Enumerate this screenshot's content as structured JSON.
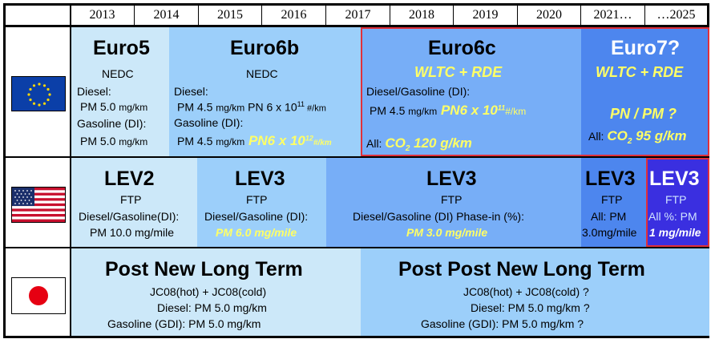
{
  "years": [
    "2013",
    "2014",
    "2015",
    "2016",
    "2017",
    "2018",
    "2019",
    "2020",
    "2021…",
    "…2025"
  ],
  "eu": {
    "euro5": {
      "title": "Euro5",
      "cycle": "NEDC",
      "l1": "Diesel:",
      "l2a": "PM 5.0 ",
      "l2b": "mg/km",
      "l3": "Gasoline (DI):",
      "l4a": "PM 5.0 ",
      "l4b": "mg/km"
    },
    "euro6b": {
      "title": "Euro6b",
      "cycle": "NEDC",
      "l1": "Diesel:",
      "l2a": "PM 4.5 ",
      "l2b": "mg/km",
      "l2c": " PN 6 x 10",
      "l2sup": "11",
      "l2d": " #/km",
      "l3": "Gasoline (DI):",
      "l4a": "PM 4.5 ",
      "l4b": "mg/km",
      "l4c": " PN6 x 10",
      "l4sup": "12",
      "l4d": "#/km"
    },
    "euro6c": {
      "title": "Euro6c",
      "cycle": "WLTC + RDE",
      "l1": "Diesel/Gasoline (DI):",
      "l2a": "PM 4.5 ",
      "l2b": "mg/km",
      "l2c": " PN6 x 10",
      "l2sup": "11",
      "l2d": "#/km",
      "l3a": "All: ",
      "l3b": "CO",
      "l3sub": "2",
      "l3c": " 120 g/km"
    },
    "euro7": {
      "title": "Euro7?",
      "cycle": "WLTC + RDE",
      "l1": "PN / PM ?",
      "l2a": "All: ",
      "l2b": "CO",
      "l2sub": "2",
      "l2c": " 95 g/km"
    }
  },
  "us": {
    "lev2": {
      "title": "LEV2",
      "cycle": "FTP",
      "l1": "Diesel/Gasoline(DI):",
      "l2": "PM 10.0 mg/mile"
    },
    "lev3a": {
      "title": "LEV3",
      "cycle": "FTP",
      "l1": "Diesel/Gasoline (DI):",
      "l2": "PM 6.0 mg/mile"
    },
    "lev3b": {
      "title": "LEV3",
      "cycle": "FTP",
      "l1": "Diesel/Gasoline (DI) Phase-in (%):",
      "l2": "PM 3.0 mg/mile"
    },
    "lev3c": {
      "title": "LEV3",
      "cycle": "FTP",
      "l1": "All: PM",
      "l2": "3.0mg/mile"
    },
    "lev3d": {
      "title": "LEV3",
      "cycle": "FTP",
      "l1": "All %: PM",
      "l2": "1 mg/mile"
    }
  },
  "jp": {
    "pnlt": {
      "title": "Post New Long Term",
      "l1": "JC08(hot) + JC08(cold)",
      "l2": "Diesel: PM 5.0 mg/km",
      "l3": "Gasoline (GDI): PM 5.0 mg/km"
    },
    "ppnlt": {
      "title": "Post Post New Long Term",
      "l1": "JC08(hot) + JC08(cold) ?",
      "l2": "Diesel: PM 5.0 mg/km ?",
      "l3": "Gasoline (GDI): PM 5.0 mg/km ?"
    }
  },
  "colors": {
    "lightest": "#cce8f9",
    "light": "#9ccffa",
    "medium": "#77aef7",
    "strong": "#4d86ee",
    "dark": "#2f63ea",
    "purple": "#3a2fe0",
    "red": "#e0303a"
  }
}
